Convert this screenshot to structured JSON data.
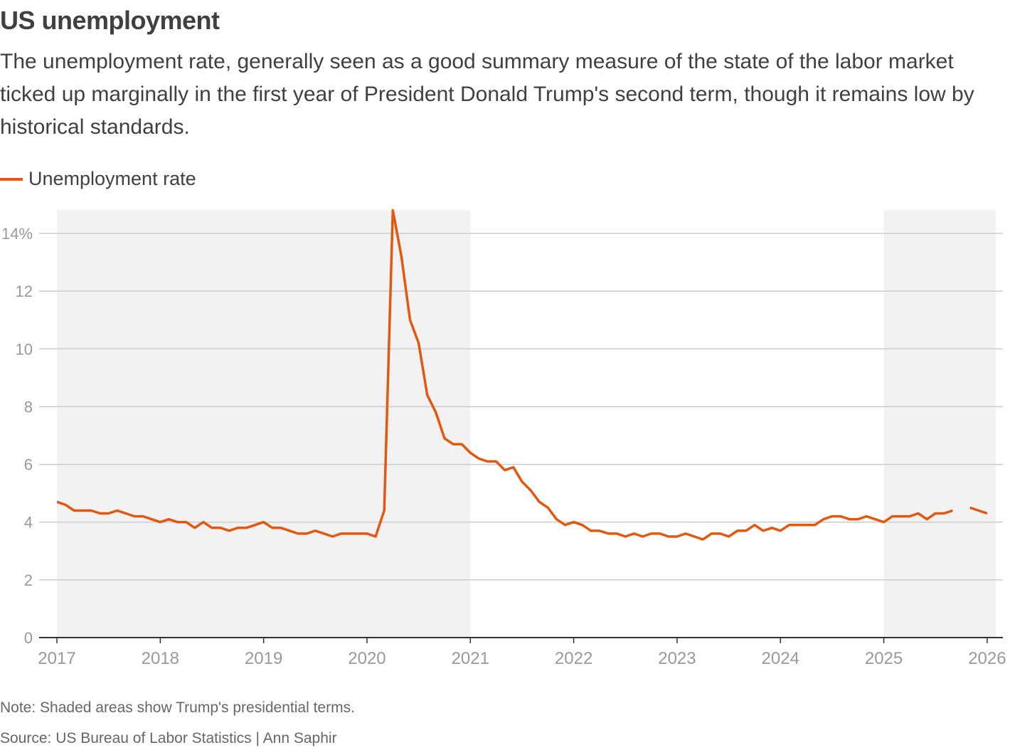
{
  "title": "US unemployment",
  "subtitle": "The unemployment rate, generally seen as a good summary measure of the state of the labor market ticked up marginally in the first year of President Donald Trump's second term, though it remains low by historical standards.",
  "note": "Note: Shaded areas show Trump's presidential terms.",
  "source": "Source: US Bureau of Labor Statistics | Ann Saphir",
  "colors": {
    "line": "#e3570f",
    "shade": "#f2f2f2",
    "grid": "#cccccc",
    "axis": "#333333",
    "tick_text": "#999999"
  },
  "chart_data": {
    "type": "line",
    "title": "US unemployment",
    "xlabel": "",
    "ylabel": "",
    "ylim": [
      0,
      14.8
    ],
    "xlim": [
      "2017-01",
      "2026-02"
    ],
    "grid": true,
    "legend": "top-left",
    "y_ticks": [
      {
        "value": 0,
        "label": "0"
      },
      {
        "value": 2,
        "label": "2"
      },
      {
        "value": 4,
        "label": "4"
      },
      {
        "value": 6,
        "label": "6"
      },
      {
        "value": 8,
        "label": "8"
      },
      {
        "value": 10,
        "label": "10"
      },
      {
        "value": 12,
        "label": "12"
      },
      {
        "value": 14,
        "label": "14%"
      }
    ],
    "x_ticks": [
      "2017",
      "2018",
      "2019",
      "2020",
      "2021",
      "2022",
      "2023",
      "2024",
      "2025",
      "2026"
    ],
    "shaded_periods": [
      {
        "start": "2017-01",
        "end": "2021-01"
      },
      {
        "start": "2025-01",
        "end": "2026-02"
      }
    ],
    "series": [
      {
        "name": "Unemployment rate",
        "start": "2017-01",
        "values": [
          4.7,
          4.6,
          4.4,
          4.4,
          4.4,
          4.3,
          4.3,
          4.4,
          4.3,
          4.2,
          4.2,
          4.1,
          4.0,
          4.1,
          4.0,
          4.0,
          3.8,
          4.0,
          3.8,
          3.8,
          3.7,
          3.8,
          3.8,
          3.9,
          4.0,
          3.8,
          3.8,
          3.7,
          3.6,
          3.6,
          3.7,
          3.6,
          3.5,
          3.6,
          3.6,
          3.6,
          3.6,
          3.5,
          4.4,
          14.8,
          13.2,
          11.0,
          10.2,
          8.4,
          7.8,
          6.9,
          6.7,
          6.7,
          6.4,
          6.2,
          6.1,
          6.1,
          5.8,
          5.9,
          5.4,
          5.1,
          4.7,
          4.5,
          4.1,
          3.9,
          4.0,
          3.9,
          3.7,
          3.7,
          3.6,
          3.6,
          3.5,
          3.6,
          3.5,
          3.6,
          3.6,
          3.5,
          3.5,
          3.6,
          3.5,
          3.4,
          3.6,
          3.6,
          3.5,
          3.7,
          3.7,
          3.9,
          3.7,
          3.8,
          3.7,
          3.9,
          3.9,
          3.9,
          3.9,
          4.1,
          4.2,
          4.2,
          4.1,
          4.1,
          4.2,
          4.1,
          4.0,
          4.2,
          4.2,
          4.2,
          4.3,
          4.1,
          4.3,
          4.3,
          4.4,
          null,
          4.5,
          4.4,
          4.3
        ]
      }
    ]
  }
}
